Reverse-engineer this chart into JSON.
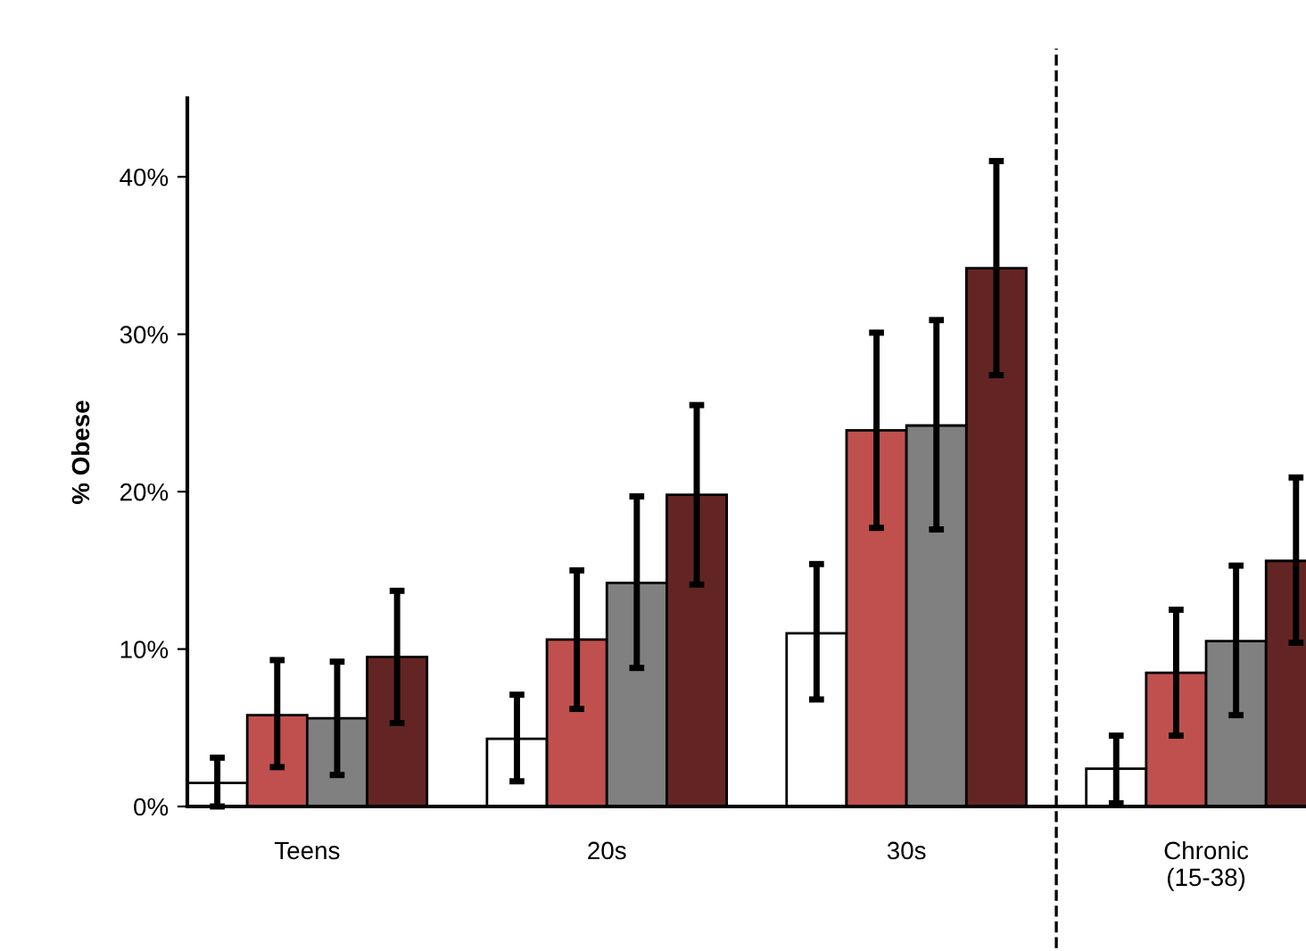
{
  "chart_data": {
    "type": "bar",
    "ylabel": "% Obese",
    "categories": [
      "Teens",
      "20s",
      "30s",
      "Chronic\n(15-38)"
    ],
    "series": [
      {
        "color": "#ffffff",
        "values": [
          1.5,
          4.3,
          11.0,
          2.4
        ],
        "errors": [
          [
            0.0,
            3.1
          ],
          [
            1.6,
            7.1
          ],
          [
            6.8,
            15.4
          ],
          [
            0.2,
            4.5
          ]
        ]
      },
      {
        "color": "#c0504d",
        "values": [
          5.8,
          10.6,
          23.9,
          8.5
        ],
        "errors": [
          [
            2.5,
            9.3
          ],
          [
            6.2,
            15.0
          ],
          [
            17.7,
            30.1
          ],
          [
            4.5,
            12.5
          ]
        ]
      },
      {
        "color": "#808080",
        "values": [
          5.6,
          14.2,
          24.2,
          10.5
        ],
        "errors": [
          [
            2.0,
            9.2
          ],
          [
            8.8,
            19.7
          ],
          [
            17.6,
            30.9
          ],
          [
            5.8,
            15.3
          ]
        ]
      },
      {
        "color": "#632523",
        "values": [
          9.5,
          19.8,
          34.2,
          15.6
        ],
        "errors": [
          [
            5.3,
            13.7
          ],
          [
            14.1,
            25.5
          ],
          [
            27.4,
            41.0
          ],
          [
            10.4,
            20.9
          ]
        ]
      }
    ],
    "ylim": [
      0,
      45
    ],
    "yticks": [
      {
        "value": 0,
        "label": "0%"
      },
      {
        "value": 10,
        "label": "10%"
      },
      {
        "value": 20,
        "label": "20%"
      },
      {
        "value": 30,
        "label": "30%"
      },
      {
        "value": 40,
        "label": "40%"
      }
    ],
    "grid": false,
    "legend": false
  }
}
